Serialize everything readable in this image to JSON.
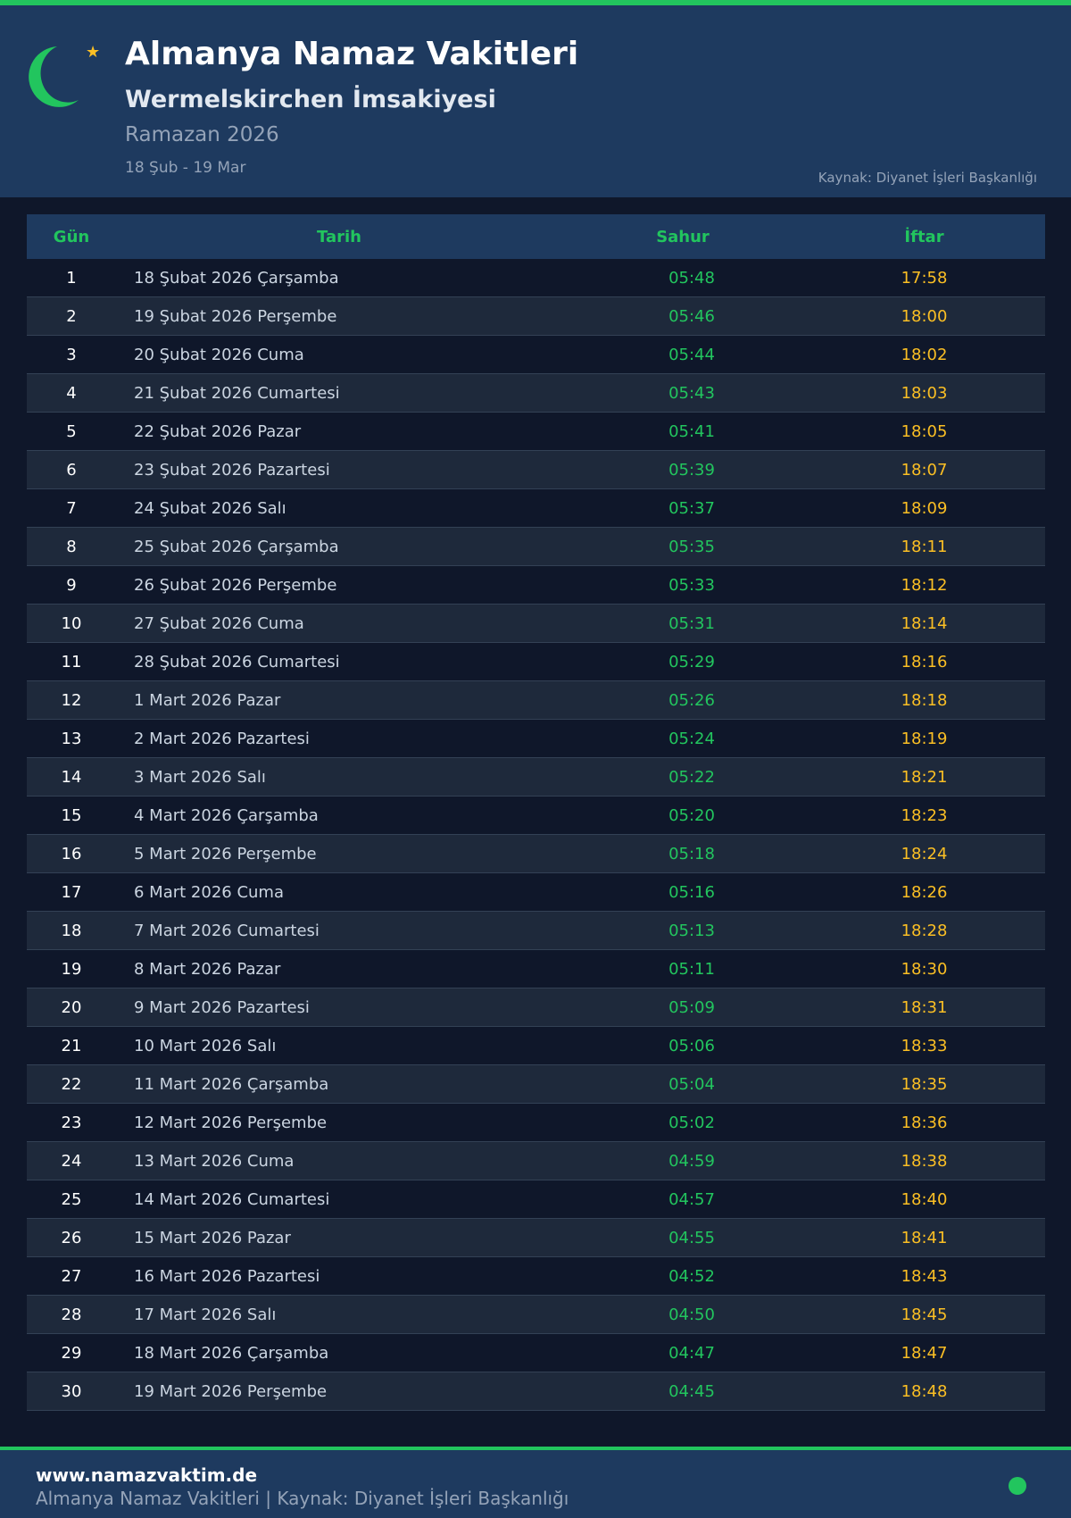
{
  "header": {
    "title": "Almanya Namaz Vakitleri",
    "subtitle": "Wermelskirchen İmsakiyesi",
    "ramazan": "Ramazan 2026",
    "range": "18 Şub - 19 Mar",
    "source": "Kaynak: Diyanet İşleri Başkanlığı",
    "icon": "crescent-star-icon"
  },
  "colors": {
    "accent": "#22c55e",
    "iftar": "#fbbf24",
    "header_bg": "#1e3a5f",
    "page_bg": "#0f172a"
  },
  "table": {
    "columns": [
      "Gün",
      "Tarih",
      "Sahur",
      "İftar"
    ],
    "rows": [
      [
        "1",
        "18 Şubat 2026 Çarşamba",
        "05:48",
        "17:58"
      ],
      [
        "2",
        "19 Şubat 2026 Perşembe",
        "05:46",
        "18:00"
      ],
      [
        "3",
        "20 Şubat 2026 Cuma",
        "05:44",
        "18:02"
      ],
      [
        "4",
        "21 Şubat 2026 Cumartesi",
        "05:43",
        "18:03"
      ],
      [
        "5",
        "22 Şubat 2026 Pazar",
        "05:41",
        "18:05"
      ],
      [
        "6",
        "23 Şubat 2026 Pazartesi",
        "05:39",
        "18:07"
      ],
      [
        "7",
        "24 Şubat 2026 Salı",
        "05:37",
        "18:09"
      ],
      [
        "8",
        "25 Şubat 2026 Çarşamba",
        "05:35",
        "18:11"
      ],
      [
        "9",
        "26 Şubat 2026 Perşembe",
        "05:33",
        "18:12"
      ],
      [
        "10",
        "27 Şubat 2026 Cuma",
        "05:31",
        "18:14"
      ],
      [
        "11",
        "28 Şubat 2026 Cumartesi",
        "05:29",
        "18:16"
      ],
      [
        "12",
        "1 Mart 2026 Pazar",
        "05:26",
        "18:18"
      ],
      [
        "13",
        "2 Mart 2026 Pazartesi",
        "05:24",
        "18:19"
      ],
      [
        "14",
        "3 Mart 2026 Salı",
        "05:22",
        "18:21"
      ],
      [
        "15",
        "4 Mart 2026 Çarşamba",
        "05:20",
        "18:23"
      ],
      [
        "16",
        "5 Mart 2026 Perşembe",
        "05:18",
        "18:24"
      ],
      [
        "17",
        "6 Mart 2026 Cuma",
        "05:16",
        "18:26"
      ],
      [
        "18",
        "7 Mart 2026 Cumartesi",
        "05:13",
        "18:28"
      ],
      [
        "19",
        "8 Mart 2026 Pazar",
        "05:11",
        "18:30"
      ],
      [
        "20",
        "9 Mart 2026 Pazartesi",
        "05:09",
        "18:31"
      ],
      [
        "21",
        "10 Mart 2026 Salı",
        "05:06",
        "18:33"
      ],
      [
        "22",
        "11 Mart 2026 Çarşamba",
        "05:04",
        "18:35"
      ],
      [
        "23",
        "12 Mart 2026 Perşembe",
        "05:02",
        "18:36"
      ],
      [
        "24",
        "13 Mart 2026 Cuma",
        "04:59",
        "18:38"
      ],
      [
        "25",
        "14 Mart 2026 Cumartesi",
        "04:57",
        "18:40"
      ],
      [
        "26",
        "15 Mart 2026 Pazar",
        "04:55",
        "18:41"
      ],
      [
        "27",
        "16 Mart 2026 Pazartesi",
        "04:52",
        "18:43"
      ],
      [
        "28",
        "17 Mart 2026 Salı",
        "04:50",
        "18:45"
      ],
      [
        "29",
        "18 Mart 2026 Çarşamba",
        "04:47",
        "18:47"
      ],
      [
        "30",
        "19 Mart 2026 Perşembe",
        "04:45",
        "18:48"
      ]
    ]
  },
  "footer": {
    "url": "www.namazvaktim.de",
    "text": "Almanya Namaz Vakitleri | Kaynak: Diyanet İşleri Başkanlığı"
  }
}
